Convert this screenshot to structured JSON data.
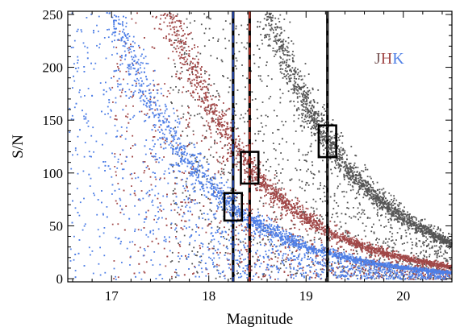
{
  "chart_data": {
    "type": "scatter",
    "title": "",
    "xlabel": "Magnitude",
    "ylabel": "S/N",
    "xlim": [
      16.55,
      20.5
    ],
    "ylim": [
      -3,
      253
    ],
    "xticks": [
      17,
      18,
      19,
      20
    ],
    "xtick_labels": [
      "17",
      "18",
      "19",
      "20"
    ],
    "yticks": [
      0,
      50,
      100,
      150,
      200,
      250
    ],
    "ytick_labels": [
      "0",
      "50",
      "100",
      "150",
      "200",
      "250"
    ],
    "grid": false,
    "legend": {
      "placement": "top-right",
      "letters": [
        {
          "text": "J",
          "color": "#7b5a5a"
        },
        {
          "text": "H",
          "color": "#a14848"
        },
        {
          "text": "K",
          "color": "#4f7fe6"
        }
      ]
    },
    "series": [
      {
        "name": "J",
        "color": "#555555",
        "curve": {
          "A": 130,
          "m0": 19.22,
          "k": 1.05
        },
        "band_width": 0.12,
        "mag_range": [
          17.6,
          20.5
        ],
        "scatter_fraction": 0.35
      },
      {
        "name": "H",
        "color": "#a14848",
        "curve": {
          "A": 105,
          "m0": 18.42,
          "k": 1.05
        },
        "band_width": 0.12,
        "mag_range": [
          17.0,
          20.5
        ],
        "scatter_fraction": 0.35
      },
      {
        "name": "K",
        "color": "#4f7fe6",
        "curve": {
          "A": 68,
          "m0": 18.25,
          "k": 1.05
        },
        "band_width": 0.14,
        "mag_range": [
          16.55,
          20.5
        ],
        "scatter_fraction": 0.45
      }
    ],
    "vertical_lines": [
      {
        "x": 18.25,
        "color": "#2244aa",
        "style": "dashed"
      },
      {
        "x": 18.42,
        "color": "#c0392b",
        "style": "dashed"
      },
      {
        "x": 19.22,
        "color": "#333333",
        "style": "dashed"
      }
    ],
    "boxes": [
      {
        "x_center": 18.25,
        "y_center": 68,
        "width_mag": 0.18,
        "height_sn": 26
      },
      {
        "x_center": 18.42,
        "y_center": 105,
        "width_mag": 0.18,
        "height_sn": 30
      },
      {
        "x_center": 19.22,
        "y_center": 130,
        "width_mag": 0.18,
        "height_sn": 30
      }
    ]
  }
}
